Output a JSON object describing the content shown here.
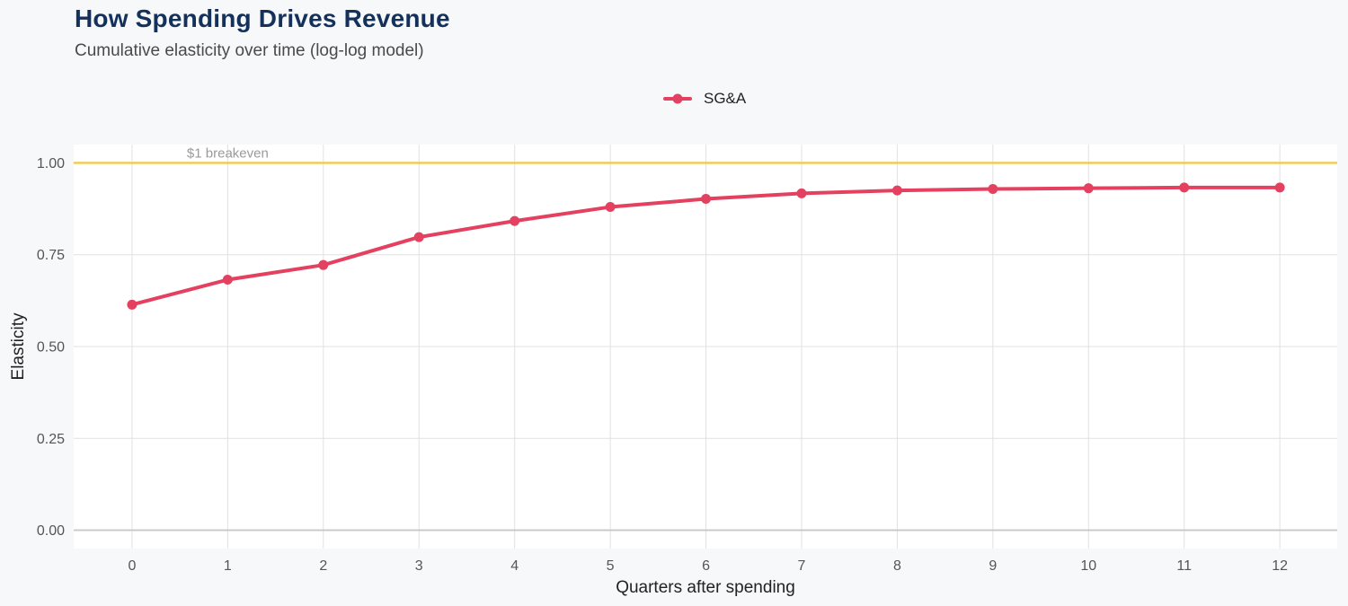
{
  "chart_data": {
    "type": "line",
    "title": "How Spending Drives Revenue",
    "subtitle": "Cumulative elasticity over time (log-log model)",
    "xlabel": "Quarters after spending",
    "ylabel": "Elasticity",
    "x": [
      0,
      1,
      2,
      3,
      4,
      5,
      6,
      7,
      8,
      9,
      10,
      11,
      12
    ],
    "xticks": [
      "0",
      "1",
      "2",
      "3",
      "4",
      "5",
      "6",
      "7",
      "8",
      "9",
      "10",
      "11",
      "12"
    ],
    "yticks": [
      "0.00",
      "0.25",
      "0.50",
      "0.75",
      "1.00"
    ],
    "ytick_values": [
      0,
      0.25,
      0.5,
      0.75,
      1.0
    ],
    "xlim": [
      -0.61,
      12.6
    ],
    "ylim": [
      -0.05,
      1.05
    ],
    "series": [
      {
        "name": "SG&A",
        "color": "#e4405f",
        "values": [
          0.614,
          0.682,
          0.722,
          0.798,
          0.842,
          0.88,
          0.902,
          0.917,
          0.925,
          0.929,
          0.931,
          0.933,
          0.933
        ]
      }
    ],
    "reference_line": {
      "y": 1.0,
      "label": "$1 breakeven",
      "label_x": 1.0,
      "color": "#f2c94c"
    },
    "legend_position": "top",
    "grid": true
  }
}
